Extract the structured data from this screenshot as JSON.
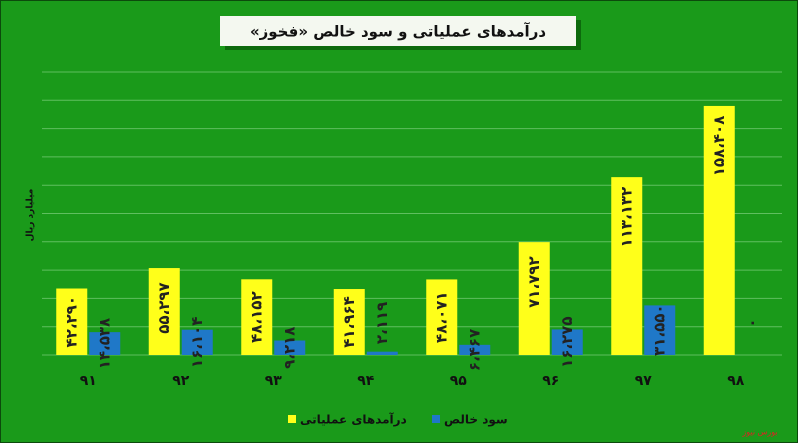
{
  "chart_data": {
    "type": "bar",
    "title": "درآمدهای عملیاتی و سود خالص «فخوز»",
    "y_label": "میلیارد ریال",
    "source": "بورس نیوز",
    "categories": [
      "۹۱",
      "۹۲",
      "۹۳",
      "۹۴",
      "۹۵",
      "۹۶",
      "۹۷",
      "۹۸"
    ],
    "series": [
      {
        "name": "درآمدهای عملیاتی",
        "color": "#ffff1a",
        "values": [
          42290,
          55297,
          48152,
          41964,
          48071,
          71792,
          113132,
          158408
        ],
        "value_labels": [
          "۴۲،۲۹۰",
          "۵۵،۲۹۷",
          "۴۸،۱۵۲",
          "۴۱،۹۶۴",
          "۴۸،۰۷۱",
          "۷۱،۷۹۲",
          "۱۱۳،۱۳۲",
          "۱۵۸،۴۰۸"
        ]
      },
      {
        "name": "سود خالص",
        "color": "#1f78c8",
        "values": [
          14538,
          16104,
          9218,
          2119,
          6467,
          16275,
          31550,
          0
        ],
        "value_labels": [
          "۱۴،۵۳۸",
          "۱۶،۱۰۴",
          "۹،۲۱۸",
          "۲،۱۱۹",
          "۶،۴۶۷",
          "۱۶،۲۷۵",
          "۳۱،۵۵۰",
          "۰"
        ]
      }
    ],
    "ylim": [
      0,
      180000
    ],
    "yticks": [
      0,
      18000,
      36000,
      54000,
      72000,
      90000,
      108000,
      126000,
      144000,
      162000,
      180000
    ],
    "grid": true
  }
}
